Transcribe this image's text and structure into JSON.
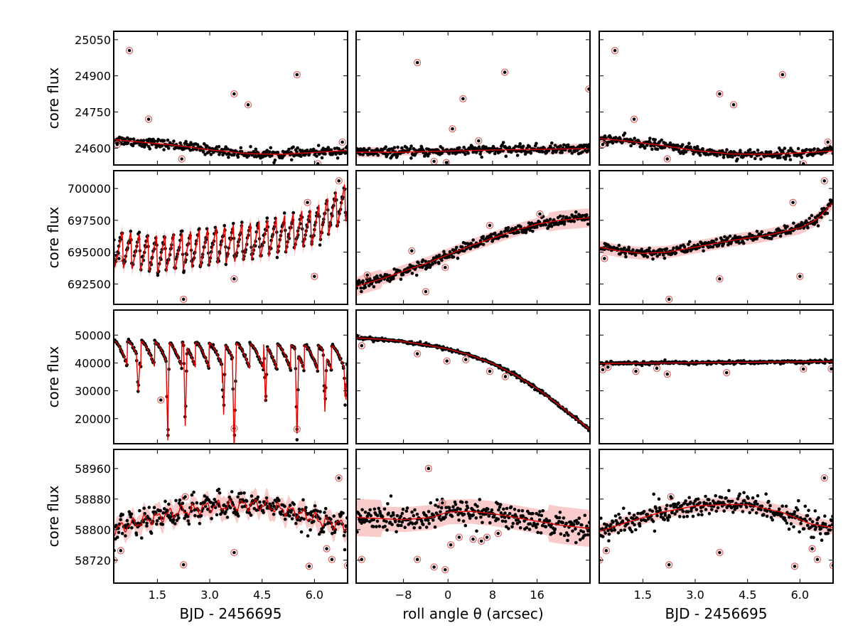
{
  "colors": {
    "points": "#000000",
    "model": "#e00000",
    "band": "#f7a8a8",
    "outlier_ring": "#e06060"
  },
  "chart_data": {
    "type": "scatter",
    "figure": {
      "rows": 4,
      "columns": 3,
      "ylabel": "core flux",
      "column_xlabels": [
        "BJD - 2456695",
        "roll angle θ (arcsec)",
        "BJD - 2456695"
      ]
    },
    "column_axes": [
      {
        "xlim": [
          0.25,
          6.95
        ],
        "ticks": [
          1.5,
          3.0,
          4.5,
          6.0
        ],
        "tick_labels": [
          "1.5",
          "3.0",
          "4.5",
          "6.0"
        ]
      },
      {
        "xlim": [
          -16.5,
          25.5
        ],
        "ticks": [
          -8,
          0,
          8,
          16
        ],
        "tick_labels": [
          "−8",
          "0",
          "8",
          "16"
        ]
      },
      {
        "xlim": [
          0.25,
          6.95
        ],
        "ticks": [
          1.5,
          3.0,
          4.5,
          6.0
        ],
        "tick_labels": [
          "1.5",
          "3.0",
          "4.5",
          "6.0"
        ]
      }
    ],
    "rows": [
      {
        "ylim": [
          24530,
          25085
        ],
        "ticks": [
          24600,
          24750,
          24900,
          25050
        ],
        "tick_labels": [
          "24600",
          "24750",
          "24900",
          "25050"
        ],
        "time_trend": {
          "x": [
            0.25,
            1.0,
            2.0,
            3.0,
            4.0,
            5.0,
            6.0,
            6.95
          ],
          "y": [
            24635,
            24625,
            24612,
            24593,
            24578,
            24574,
            24582,
            24590
          ]
        },
        "roll_trend": {
          "x": [
            -16.5,
            -8,
            0,
            8,
            16,
            25.5
          ],
          "y": [
            24583,
            24583,
            24588,
            24592,
            24595,
            24598
          ]
        },
        "systematics_trend": {
          "x": [
            0.25,
            1.0,
            2.0,
            3.0,
            4.0,
            5.0,
            6.0,
            6.95
          ],
          "y": [
            24640,
            24630,
            24612,
            24590,
            24576,
            24574,
            24580,
            24588
          ]
        },
        "band_halfwidth": 14,
        "scatter_sigma": 10,
        "outliers": [
          {
            "x": 0.7,
            "y": 25005
          },
          {
            "x": 1.25,
            "y": 24720
          },
          {
            "x": 3.7,
            "y": 24825
          },
          {
            "x": 4.1,
            "y": 24780
          },
          {
            "x": 5.5,
            "y": 24905
          },
          {
            "x": 2.2,
            "y": 24555
          },
          {
            "x": 6.1,
            "y": 24535
          },
          {
            "x": 0.35,
            "y": 24615
          },
          {
            "x": 6.8,
            "y": 24625
          }
        ],
        "roll_outliers": [
          {
            "x": -5.5,
            "y": 24955
          },
          {
            "x": 10.2,
            "y": 24915
          },
          {
            "x": 2.7,
            "y": 24805
          },
          {
            "x": 25.3,
            "y": 24845
          },
          {
            "x": 0.8,
            "y": 24680
          },
          {
            "x": -2.5,
            "y": 24545
          },
          {
            "x": -0.3,
            "y": 24540
          },
          {
            "x": 5.5,
            "y": 24630
          }
        ]
      },
      {
        "ylim": [
          690900,
          701400
        ],
        "ticks": [
          692500,
          695000,
          697500,
          700000
        ],
        "tick_labels": [
          "692500",
          "695000",
          "697500",
          "700000"
        ],
        "time_trend": {
          "x": [
            0.25,
            1.5,
            3.0,
            4.5,
            6.0,
            6.95
          ],
          "y": [
            695300,
            694800,
            695400,
            696000,
            697000,
            699000
          ]
        },
        "roll_trend": {
          "x": [
            -16.5,
            -12,
            -8,
            -4,
            0,
            4,
            8,
            12,
            16,
            20,
            25.5
          ],
          "y": [
            692300,
            692900,
            693500,
            694100,
            694800,
            695500,
            696100,
            696700,
            697200,
            697500,
            697700
          ]
        },
        "systematics_trend": {
          "x": [
            0.25,
            0.8,
            1.5,
            2.2,
            3.0,
            4.0,
            5.0,
            6.0,
            6.5,
            6.95
          ],
          "y": [
            695400,
            695100,
            694900,
            695000,
            695400,
            695900,
            696300,
            696900,
            697600,
            698900
          ]
        },
        "sawtooth": {
          "period": 0.245,
          "amplitude": 3000
        },
        "band_halfwidth": 500,
        "scatter_sigma": 200,
        "outliers": [
          {
            "x": 0.4,
            "y": 694500
          },
          {
            "x": 2.25,
            "y": 691300
          },
          {
            "x": 3.7,
            "y": 692900
          },
          {
            "x": 6.0,
            "y": 693100
          },
          {
            "x": 6.7,
            "y": 700600
          },
          {
            "x": 5.8,
            "y": 698900
          }
        ],
        "roll_outliers": [
          {
            "x": -14.5,
            "y": 693200
          },
          {
            "x": -4.0,
            "y": 691900
          },
          {
            "x": -6.5,
            "y": 695100
          },
          {
            "x": 7.5,
            "y": 697100
          },
          {
            "x": 16.5,
            "y": 698000
          },
          {
            "x": -0.5,
            "y": 693800
          }
        ]
      },
      {
        "ylim": [
          11000,
          59000
        ],
        "ticks": [
          20000,
          30000,
          40000,
          50000
        ],
        "tick_labels": [
          "20000",
          "30000",
          "40000",
          "50000"
        ],
        "time_trend": {
          "x": [
            0.25,
            6.95
          ],
          "y": [
            48000,
            46000
          ]
        },
        "roll_trend": {
          "x": [
            -16.5,
            -12,
            -8,
            -4,
            0,
            4,
            8,
            12,
            16,
            20,
            25.5
          ],
          "y": [
            49000,
            48500,
            47700,
            46500,
            45000,
            42800,
            39800,
            35800,
            30800,
            24800,
            16000
          ]
        },
        "systematics_trend": {
          "x": [
            0.25,
            6.95
          ],
          "y": [
            39800,
            40500
          ]
        },
        "eclipses": {
          "period": 0.39,
          "primary_x": [
            0.95,
            1.8,
            2.3,
            3.4,
            3.7,
            4.6,
            5.5,
            6.3,
            6.9
          ],
          "primary_depth": [
            12000,
            27000,
            30000,
            26000,
            32000,
            22000,
            32000,
            21000,
            20000
          ]
        },
        "band_halfwidth": 500,
        "scatter_sigma": 300,
        "outliers": [
          {
            "x": 3.7,
            "y": 16500
          },
          {
            "x": 5.5,
            "y": 16200
          },
          {
            "x": 1.6,
            "y": 26700
          }
        ],
        "roll_outliers": [
          {
            "x": -15.5,
            "y": 46200
          },
          {
            "x": -5.5,
            "y": 43300
          },
          {
            "x": -0.2,
            "y": 40700
          },
          {
            "x": 3.2,
            "y": 41200
          },
          {
            "x": 7.5,
            "y": 37000
          },
          {
            "x": 10.3,
            "y": 35100
          }
        ],
        "sys_outliers": [
          {
            "x": 0.35,
            "y": 37600
          },
          {
            "x": 0.5,
            "y": 38500
          },
          {
            "x": 1.3,
            "y": 37000
          },
          {
            "x": 2.2,
            "y": 36000
          },
          {
            "x": 3.9,
            "y": 36500
          },
          {
            "x": 6.1,
            "y": 37800
          },
          {
            "x": 6.9,
            "y": 37900
          },
          {
            "x": 1.9,
            "y": 38100
          }
        ]
      },
      {
        "ylim": [
          58660,
          59010
        ],
        "ticks": [
          58720,
          58800,
          58880,
          58960
        ],
        "tick_labels": [
          "58720",
          "58800",
          "58880",
          "58960"
        ],
        "time_trend": {
          "x": [
            0.25,
            1.0,
            2.0,
            3.0,
            4.0,
            4.5,
            5.5,
            6.3,
            6.95
          ],
          "y": [
            58800,
            58820,
            58845,
            58860,
            58865,
            58865,
            58845,
            58820,
            58810
          ]
        },
        "roll_trend": {
          "x": [
            -16.5,
            -8,
            -3,
            0,
            4,
            8,
            12,
            16,
            20,
            25.5
          ],
          "y": [
            58832,
            58826,
            58832,
            58846,
            58848,
            58842,
            58832,
            58822,
            58812,
            58803
          ]
        },
        "systematics_trend": {
          "x": [
            0.25,
            1.0,
            2.0,
            3.0,
            4.0,
            4.5,
            5.5,
            6.3,
            6.95
          ],
          "y": [
            58795,
            58818,
            58845,
            58862,
            58866,
            58865,
            58845,
            58815,
            58805
          ]
        },
        "band_halfwidth": 18,
        "scatter_sigma": 16,
        "wiggle": 14,
        "outliers": [
          {
            "x": 0.25,
            "y": 58720
          },
          {
            "x": 2.25,
            "y": 58708
          },
          {
            "x": 5.85,
            "y": 58704
          },
          {
            "x": 6.7,
            "y": 58935
          },
          {
            "x": 6.95,
            "y": 58706
          },
          {
            "x": 3.7,
            "y": 58740
          },
          {
            "x": 6.35,
            "y": 58750
          },
          {
            "x": 0.45,
            "y": 58745
          },
          {
            "x": 6.5,
            "y": 58722
          },
          {
            "x": 2.3,
            "y": 58886
          }
        ],
        "roll_outliers": [
          {
            "x": -15.5,
            "y": 58722
          },
          {
            "x": -3.5,
            "y": 58960
          },
          {
            "x": -5.5,
            "y": 58722
          },
          {
            "x": -2.5,
            "y": 58702
          },
          {
            "x": -0.5,
            "y": 58695
          },
          {
            "x": 0.5,
            "y": 58760
          },
          {
            "x": 2.0,
            "y": 58780
          },
          {
            "x": 4.5,
            "y": 58775
          },
          {
            "x": 7.0,
            "y": 58780
          },
          {
            "x": 9.0,
            "y": 58790
          },
          {
            "x": -1.0,
            "y": 58870
          },
          {
            "x": 6.0,
            "y": 58770
          }
        ]
      }
    ]
  }
}
